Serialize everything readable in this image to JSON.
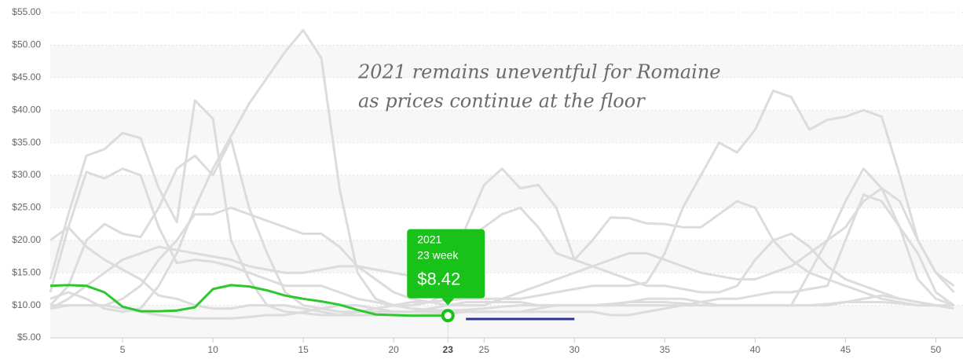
{
  "chart_data": {
    "type": "line",
    "annotation": [
      "2021 remains uneventful for Romaine",
      "as prices continue at the floor"
    ],
    "x": [
      1,
      2,
      3,
      4,
      5,
      6,
      7,
      8,
      9,
      10,
      11,
      12,
      13,
      14,
      15,
      16,
      17,
      18,
      19,
      20,
      21,
      22,
      23,
      24,
      25,
      26,
      27,
      28,
      29,
      30,
      31,
      32,
      33,
      34,
      35,
      36,
      37,
      38,
      39,
      40,
      41,
      42,
      43,
      44,
      45,
      46,
      47,
      48,
      49,
      50,
      51
    ],
    "xlim": [
      1,
      51.5
    ],
    "ylim": [
      5,
      55
    ],
    "xticks": [
      5,
      10,
      15,
      20,
      23,
      25,
      30,
      35,
      40,
      45,
      50
    ],
    "yticks": [
      {
        "value": 5,
        "label": "$5.00"
      },
      {
        "value": 10,
        "label": "$10.00"
      },
      {
        "value": 15,
        "label": "$15.00"
      },
      {
        "value": 20,
        "label": "$20.00"
      },
      {
        "value": 25,
        "label": "$25.00"
      },
      {
        "value": 30,
        "label": "$30.00"
      },
      {
        "value": 35,
        "label": "$35.00"
      },
      {
        "value": 40,
        "label": "$40.00"
      },
      {
        "value": 45,
        "label": "$45.00"
      },
      {
        "value": 50,
        "label": "$50.00"
      },
      {
        "value": 55,
        "label": "$55.00"
      }
    ],
    "grid": true,
    "bands": true,
    "series": [
      {
        "color": "#dcdcdc",
        "values": [
          11,
          12,
          11,
          9.5,
          9,
          9.5,
          13,
          18,
          25,
          31,
          36,
          41,
          45,
          49,
          52.3,
          48,
          28,
          15,
          11,
          10,
          9.5,
          9.3,
          9.2,
          9.3,
          9.5,
          9.8,
          10,
          10,
          10,
          10,
          10,
          10.2,
          10.5,
          10.5,
          10.5,
          10.3,
          10,
          10,
          10,
          10,
          10,
          10,
          10,
          10.2,
          10.5,
          10.5,
          10.5,
          10.3,
          10,
          10,
          10
        ]
      },
      {
        "color": "#dcdcdc",
        "values": [
          14,
          24,
          33,
          34,
          36.5,
          35.7,
          28,
          22.8,
          41.5,
          38.7,
          20,
          14,
          10,
          9,
          8.8,
          8.5,
          8.5,
          9,
          9.5,
          10,
          10.5,
          10.5,
          10.8,
          11,
          11,
          11,
          11,
          11.5,
          12,
          12.5,
          13,
          13,
          13,
          13.5,
          18,
          25,
          30,
          35,
          33.5,
          37,
          43,
          42,
          37,
          38.5,
          39,
          40,
          39,
          30,
          20,
          15,
          12
        ]
      },
      {
        "color": "#dcdcdc",
        "values": [
          10,
          13,
          20,
          22.5,
          21,
          20.5,
          25,
          31,
          33,
          30,
          35.5,
          25,
          18,
          12,
          10,
          9.5,
          9,
          9,
          9,
          9,
          9,
          9.5,
          10,
          10.5,
          10.5,
          10.5,
          10.5,
          10,
          10,
          10,
          10,
          10,
          10,
          10,
          10,
          10,
          10,
          10,
          10,
          10,
          10,
          10,
          15,
          20,
          26,
          31,
          28,
          22,
          14,
          11,
          10
        ]
      },
      {
        "color": "#dcdcdc",
        "values": [
          12,
          22,
          30.5,
          29.5,
          31,
          30,
          22,
          16.5,
          17,
          16.7,
          16,
          15,
          14,
          13,
          13,
          13,
          12,
          11,
          10.5,
          10,
          10,
          10.5,
          12,
          22,
          28.5,
          31,
          28,
          28.5,
          25,
          17,
          20,
          23.5,
          23.4,
          22.6,
          22.5,
          22,
          22,
          24,
          26,
          25,
          20,
          17,
          15,
          14,
          13,
          12,
          11,
          10.5,
          10,
          10,
          10
        ]
      },
      {
        "color": "#dcdcdc",
        "values": [
          20,
          22,
          19,
          17,
          15.5,
          14,
          11.5,
          11,
          10,
          9.5,
          9.5,
          10,
          10,
          10,
          9.5,
          9,
          8.5,
          8.5,
          8.5,
          8.5,
          8.5,
          8.6,
          8.7,
          9,
          9,
          9,
          9,
          9,
          9,
          9,
          9,
          8.5,
          8.5,
          9,
          9.5,
          10,
          10.5,
          11,
          11,
          11.5,
          12,
          12,
          12.5,
          13,
          20,
          27,
          26,
          22,
          18,
          12,
          10
        ]
      },
      {
        "color": "#dcdcdc",
        "values": [
          9.5,
          11,
          13,
          15,
          17,
          18,
          19,
          18.5,
          18,
          17.5,
          17,
          16,
          15.5,
          15,
          15,
          15.5,
          16,
          16,
          15.5,
          15,
          14.5,
          14.5,
          15,
          20,
          22,
          24,
          25,
          22,
          18,
          17,
          16,
          15,
          14,
          13,
          13,
          12.5,
          12,
          12,
          13,
          17,
          20,
          21,
          19,
          16,
          14,
          13,
          12,
          11,
          10.5,
          10,
          10
        ]
      },
      {
        "color": "#dcdcdc",
        "values": [
          10,
          10,
          10,
          10,
          11,
          13,
          17,
          20,
          24,
          24,
          25,
          24,
          23,
          22,
          21,
          21,
          19,
          16,
          14,
          12,
          11,
          10.5,
          10,
          10,
          10,
          11,
          12,
          13,
          14,
          15,
          16,
          17,
          18,
          18,
          17,
          16,
          15,
          14.5,
          14,
          14,
          15,
          16,
          18,
          20,
          22,
          26,
          28,
          26,
          20,
          15,
          13
        ]
      },
      {
        "color": "#dcdcdc",
        "values": [
          9.5,
          10,
          10,
          10,
          9.5,
          9,
          8.5,
          8.2,
          8,
          8,
          8,
          8.2,
          8.5,
          8.5,
          9,
          9.5,
          10,
          10,
          9.5,
          9,
          9,
          9,
          9,
          9,
          9,
          9,
          9,
          9.5,
          10,
          10,
          10,
          10,
          10.5,
          11,
          11,
          11,
          10.5,
          10,
          10,
          10,
          10,
          10,
          10,
          10,
          10.5,
          11,
          11.5,
          11,
          10.5,
          10,
          9.5
        ]
      },
      {
        "color": "#2ec82e",
        "values": [
          13,
          13.1,
          13,
          12,
          9.8,
          9.1,
          9.1,
          9.2,
          9.7,
          12.5,
          13.1,
          12.9,
          12.3,
          11.5,
          11,
          10.6,
          10.1,
          9.3,
          8.6,
          8.5,
          8.4,
          8.4,
          8.42,
          null,
          null,
          null,
          null,
          null,
          null,
          null,
          null,
          null,
          null,
          null,
          null,
          null,
          null,
          null,
          null,
          null,
          null,
          null,
          null,
          null,
          null,
          null,
          null,
          null,
          null,
          null,
          null
        ]
      },
      {
        "color": "#2b3590",
        "values": [
          null,
          null,
          null,
          null,
          null,
          null,
          null,
          null,
          null,
          null,
          null,
          null,
          null,
          null,
          null,
          null,
          null,
          null,
          null,
          null,
          null,
          null,
          null,
          7.9,
          7.9,
          7.9,
          7.9,
          7.9,
          7.9,
          7.9,
          null,
          null,
          null,
          null,
          null,
          null,
          null,
          null,
          null,
          null,
          null,
          null,
          null,
          null,
          null,
          null,
          null,
          null,
          null,
          null,
          null
        ]
      }
    ],
    "tooltip": {
      "series": 8,
      "x": 23,
      "value": 8.42,
      "label": "2021",
      "sublabel": "23 week",
      "value_label": "$8.42",
      "color": "#19c219"
    }
  }
}
